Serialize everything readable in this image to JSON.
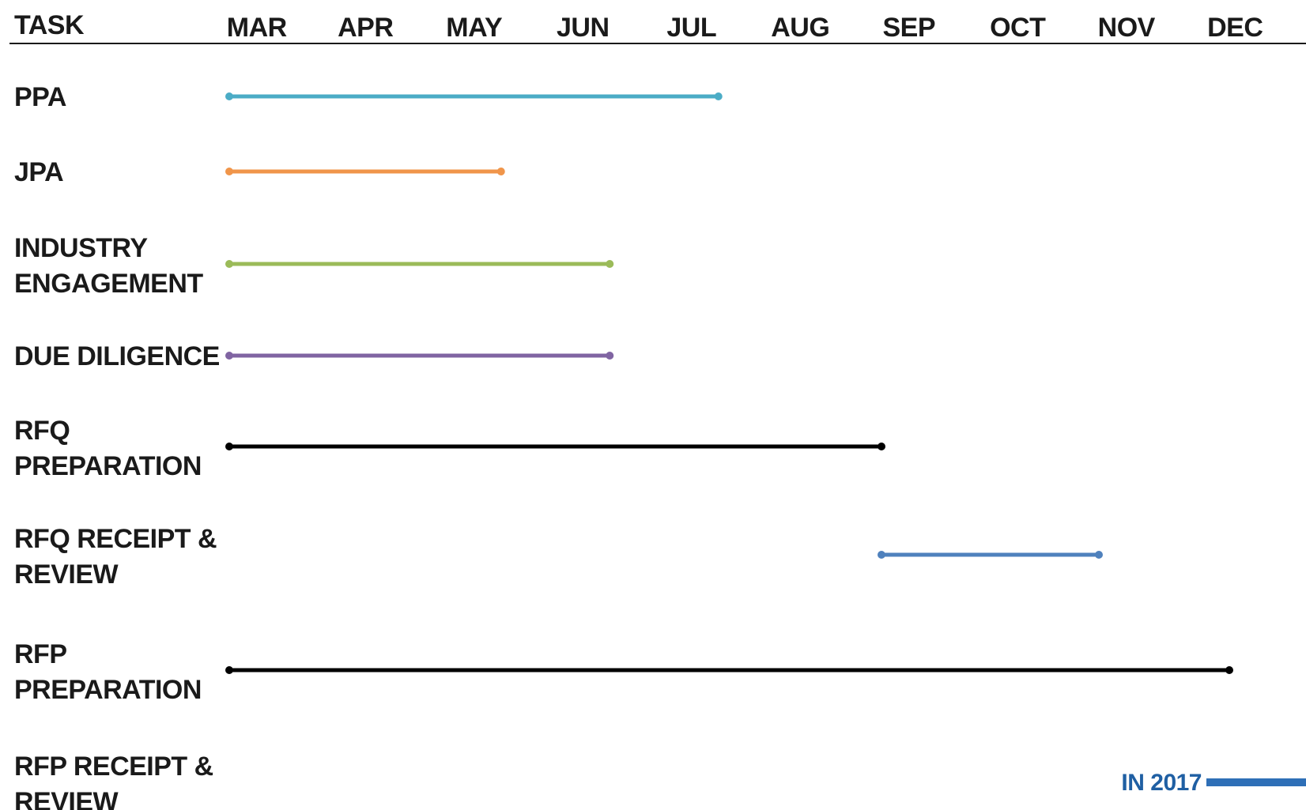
{
  "chart_data": {
    "type": "gantt",
    "header": "TASK",
    "months": [
      "MAR",
      "APR",
      "MAY",
      "JUN",
      "JUL",
      "AUG",
      "SEP",
      "OCT",
      "NOV",
      "DEC"
    ],
    "tasks": [
      {
        "label": [
          "PPA"
        ],
        "start": 0.0,
        "end": 4.5,
        "color": "#4bacc6"
      },
      {
        "label": [
          "JPA"
        ],
        "start": 0.0,
        "end": 2.5,
        "color": "#f0954a"
      },
      {
        "label": [
          "INDUSTRY",
          "ENGAGEMENT"
        ],
        "start": 0.0,
        "end": 3.5,
        "color": "#9bbb59"
      },
      {
        "label": [
          "DUE DILIGENCE"
        ],
        "start": 0.0,
        "end": 3.5,
        "color": "#8064a2"
      },
      {
        "label": [
          "RFQ",
          "PREPARATION"
        ],
        "start": 0.0,
        "end": 6.0,
        "color": "#000000"
      },
      {
        "label": [
          "RFQ RECEIPT &",
          "REVIEW"
        ],
        "start": 6.0,
        "end": 8.0,
        "color": "#4f81bd"
      },
      {
        "label": [
          "RFP",
          "PREPARATION"
        ],
        "start": 0.0,
        "end": 9.2,
        "color": "#000000"
      },
      {
        "label": [
          "RFP RECEIPT &",
          "REVIEW"
        ],
        "note": "IN 2017",
        "color": "#2e6fb7"
      }
    ],
    "grid": false
  }
}
